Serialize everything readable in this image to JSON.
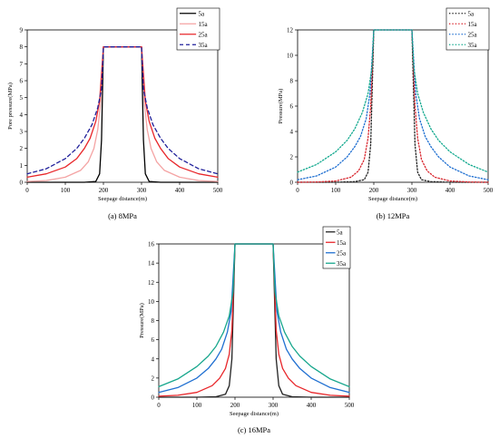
{
  "chart_data": [
    {
      "type": "line",
      "caption": "(a) 8MPa",
      "xlabel": "Seepage distance(m)",
      "ylabel": "Pore pressure(MPa)",
      "xlim": [
        0,
        500
      ],
      "ylim": [
        0,
        9
      ],
      "xticks": [
        0,
        100,
        200,
        300,
        400,
        500
      ],
      "yticks": [
        0,
        1,
        2,
        3,
        4,
        5,
        6,
        7,
        8,
        9
      ],
      "legend_position": "top-right",
      "series": [
        {
          "name": "5a",
          "color": "#000000",
          "dash": "solid",
          "x": [
            0,
            100,
            150,
            180,
            190,
            195,
            200,
            300,
            305,
            310,
            320,
            350,
            400,
            500
          ],
          "values": [
            0,
            0,
            0,
            0.05,
            0.5,
            2.5,
            8,
            8,
            2.5,
            0.5,
            0.05,
            0,
            0,
            0
          ]
        },
        {
          "name": "15a",
          "color": "#f4a3a3",
          "dash": "solid",
          "x": [
            0,
            50,
            100,
            140,
            160,
            175,
            185,
            192,
            200,
            300,
            308,
            315,
            325,
            340,
            360,
            400,
            450,
            500
          ],
          "values": [
            0.05,
            0.1,
            0.3,
            0.7,
            1.2,
            2.0,
            3.1,
            4.5,
            8,
            8,
            4.5,
            3.1,
            2.0,
            1.2,
            0.7,
            0.3,
            0.1,
            0.05
          ]
        },
        {
          "name": "25a",
          "color": "#e8262a",
          "dash": "solid",
          "x": [
            0,
            50,
            100,
            130,
            150,
            165,
            180,
            190,
            200,
            300,
            310,
            320,
            335,
            350,
            370,
            400,
            450,
            500
          ],
          "values": [
            0.3,
            0.5,
            0.9,
            1.4,
            2.0,
            2.6,
            3.6,
            4.8,
            8,
            8,
            4.8,
            3.6,
            2.6,
            2.0,
            1.4,
            0.9,
            0.5,
            0.3
          ]
        },
        {
          "name": "35a",
          "color": "#1f1f9a",
          "dash": "dashed",
          "x": [
            0,
            50,
            100,
            130,
            150,
            170,
            185,
            195,
            200,
            300,
            305,
            315,
            330,
            350,
            370,
            400,
            450,
            500
          ],
          "values": [
            0.5,
            0.8,
            1.4,
            2.0,
            2.6,
            3.4,
            4.4,
            5.5,
            8,
            8,
            5.5,
            4.4,
            3.4,
            2.6,
            2.0,
            1.4,
            0.8,
            0.5
          ]
        }
      ]
    },
    {
      "type": "line",
      "caption": "(b) 12MPa",
      "xlabel": "Seepage distance(m)",
      "ylabel": "Pressure(MPa)",
      "xlim": [
        0,
        500
      ],
      "ylim": [
        0,
        12
      ],
      "xticks": [
        0,
        100,
        200,
        300,
        400,
        500
      ],
      "yticks": [
        0,
        2,
        4,
        6,
        8,
        10,
        12
      ],
      "legend_position": "top-right",
      "series": [
        {
          "name": "5a",
          "color": "#222222",
          "dash": "dotted",
          "x": [
            0,
            100,
            150,
            175,
            185,
            192,
            200,
            300,
            308,
            315,
            325,
            350,
            400,
            500
          ],
          "values": [
            0,
            0,
            0.05,
            0.2,
            0.8,
            3.0,
            12,
            12,
            3.0,
            0.8,
            0.2,
            0.05,
            0,
            0
          ]
        },
        {
          "name": "15a",
          "color": "#d9262e",
          "dash": "dotted",
          "x": [
            0,
            50,
            100,
            140,
            160,
            175,
            185,
            192,
            200,
            300,
            308,
            315,
            325,
            340,
            360,
            400,
            450,
            500
          ],
          "values": [
            0,
            0.02,
            0.1,
            0.4,
            0.9,
            1.8,
            3.5,
            6.0,
            12,
            12,
            6.0,
            3.5,
            1.8,
            0.9,
            0.4,
            0.1,
            0.02,
            0
          ]
        },
        {
          "name": "25a",
          "color": "#1f6fd1",
          "dash": "dotted",
          "x": [
            0,
            50,
            100,
            130,
            150,
            165,
            180,
            190,
            200,
            300,
            310,
            320,
            335,
            350,
            370,
            400,
            450,
            500
          ],
          "values": [
            0.2,
            0.5,
            1.2,
            2.0,
            2.8,
            3.6,
            5.0,
            7.0,
            12,
            12,
            7.0,
            5.0,
            3.6,
            2.8,
            2.0,
            1.2,
            0.5,
            0.2
          ]
        },
        {
          "name": "35a",
          "color": "#13a98f",
          "dash": "dotted",
          "x": [
            0,
            50,
            100,
            130,
            150,
            170,
            185,
            195,
            200,
            300,
            305,
            315,
            330,
            350,
            370,
            400,
            450,
            500
          ],
          "values": [
            0.8,
            1.4,
            2.4,
            3.3,
            4.2,
            5.5,
            7.0,
            9.0,
            12,
            12,
            9.0,
            7.0,
            5.5,
            4.2,
            3.3,
            2.4,
            1.4,
            0.8
          ]
        }
      ]
    },
    {
      "type": "line",
      "caption": "(c) 16MPa",
      "xlabel": "Seepage distance(m)",
      "ylabel": "Pressure(MPa)",
      "xlim": [
        0,
        500
      ],
      "ylim": [
        0,
        16
      ],
      "xticks": [
        0,
        100,
        200,
        300,
        400,
        500
      ],
      "yticks": [
        0,
        2,
        4,
        6,
        8,
        10,
        12,
        14,
        16
      ],
      "legend_position": "top-right",
      "series": [
        {
          "name": "5a",
          "color": "#222222",
          "dash": "solid",
          "x": [
            0,
            100,
            150,
            175,
            185,
            192,
            200,
            300,
            308,
            315,
            325,
            350,
            400,
            500
          ],
          "values": [
            0,
            0,
            0.05,
            0.3,
            1.2,
            4.0,
            16,
            16,
            4.0,
            1.2,
            0.3,
            0.05,
            0,
            0
          ]
        },
        {
          "name": "15a",
          "color": "#e8262a",
          "dash": "solid",
          "x": [
            0,
            50,
            100,
            140,
            160,
            175,
            185,
            192,
            200,
            300,
            308,
            315,
            325,
            340,
            360,
            400,
            450,
            500
          ],
          "values": [
            0.1,
            0.2,
            0.5,
            1.2,
            2.0,
            3.0,
            4.5,
            7.0,
            16,
            16,
            7.0,
            4.5,
            3.0,
            2.0,
            1.2,
            0.5,
            0.2,
            0.1
          ]
        },
        {
          "name": "25a",
          "color": "#1f6fd1",
          "dash": "solid",
          "x": [
            0,
            50,
            100,
            130,
            150,
            165,
            180,
            190,
            200,
            300,
            310,
            320,
            335,
            350,
            370,
            400,
            450,
            500
          ],
          "values": [
            0.5,
            1.0,
            2.0,
            3.0,
            4.0,
            5.0,
            6.8,
            9.0,
            16,
            16,
            9.0,
            6.8,
            5.0,
            4.0,
            3.0,
            2.0,
            1.0,
            0.5
          ]
        },
        {
          "name": "35a",
          "color": "#16a68c",
          "dash": "solid",
          "x": [
            0,
            50,
            100,
            130,
            150,
            170,
            185,
            195,
            200,
            300,
            305,
            315,
            330,
            350,
            370,
            400,
            450,
            500
          ],
          "values": [
            1.1,
            1.9,
            3.2,
            4.3,
            5.3,
            6.8,
            8.5,
            11.0,
            16,
            16,
            11.0,
            8.5,
            6.8,
            5.3,
            4.3,
            3.2,
            1.9,
            1.1
          ]
        }
      ]
    }
  ]
}
